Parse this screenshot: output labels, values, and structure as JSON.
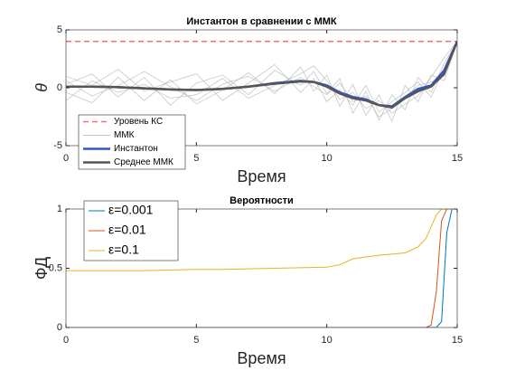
{
  "chart_data": [
    {
      "type": "line",
      "title": "Инстантон в сравнении с ММК",
      "xlabel": "Время",
      "ylabel": "θ",
      "x": [
        0,
        1,
        2,
        3,
        4,
        5,
        6,
        7,
        8,
        9,
        9.5,
        10,
        10.5,
        11,
        11.5,
        12,
        12.5,
        13,
        13.5,
        14,
        14.5,
        15
      ],
      "xlim": [
        0,
        15
      ],
      "ylim": [
        -5,
        5
      ],
      "xticks": [
        0,
        5,
        10,
        15
      ],
      "yticks": [
        -5,
        0,
        5
      ],
      "legend": "southwest",
      "series": [
        {
          "name": "Уровень КС",
          "color": "#ff6b6b",
          "dash": true,
          "width": 1.5,
          "values": [
            4,
            4,
            4,
            4,
            4,
            4,
            4,
            4,
            4,
            4,
            4,
            4,
            4,
            4,
            4,
            4,
            4,
            4,
            4,
            4,
            4,
            4
          ]
        },
        {
          "name": "ММК",
          "color": "#b0b0b0",
          "width": 0.8,
          "traces": true,
          "values": [
            [
              0.3,
              1.2,
              -0.8,
              0.9,
              -1.5,
              0.4,
              1.1,
              -0.6,
              1.5,
              0.2,
              1.4,
              -0.5,
              0.8,
              -2.2,
              -0.3,
              -2.8,
              -0.6,
              -1.9,
              0.9,
              -0.4,
              2.1,
              4
            ],
            [
              -0.4,
              -1.3,
              0.9,
              -1.1,
              0.7,
              -1.4,
              -0.2,
              1.3,
              -0.5,
              1.8,
              -0.3,
              1.1,
              -1.6,
              0.3,
              -2.4,
              -0.6,
              -2.9,
              0.2,
              -1.2,
              1.1,
              0.6,
              4
            ],
            [
              1.0,
              0.2,
              1.6,
              -0.3,
              0.5,
              1.2,
              -1.1,
              0.4,
              2.0,
              -0.4,
              0.8,
              -1.2,
              -0.2,
              -1.5,
              0.2,
              -2.1,
              -1.2,
              -0.4,
              0.5,
              -0.8,
              1.6,
              4
            ],
            [
              -1.1,
              0.6,
              -0.4,
              0.3,
              -0.9,
              -0.6,
              0.8,
              -0.9,
              0.2,
              1.2,
              1.9,
              0.6,
              -1.0,
              -0.4,
              -1.8,
              -1.1,
              -2.2,
              -1.4,
              -0.7,
              0.9,
              2.6,
              4
            ],
            [
              0.6,
              -0.7,
              0.2,
              1.4,
              0.1,
              -1.1,
              0.3,
              1.0,
              -0.3,
              0.9,
              0.1,
              -0.6,
              0.4,
              -1.2,
              -0.7,
              -2.5,
              -1.8,
              -0.9,
              0.2,
              0.5,
              1.0,
              4
            ]
          ]
        },
        {
          "name": "Инстантон",
          "color": "#3355cc",
          "width": 2.5,
          "values": [
            0.1,
            0.1,
            0.05,
            -0.05,
            -0.15,
            -0.2,
            -0.1,
            0.1,
            0.4,
            0.6,
            0.5,
            0.2,
            -0.4,
            -0.8,
            -1.0,
            -1.5,
            -1.6,
            -0.8,
            -0.1,
            0.2,
            1.5,
            4
          ]
        },
        {
          "name": "Среднее ММК",
          "color": "#555555",
          "width": 2.5,
          "values": [
            0.1,
            0.1,
            0.05,
            -0.05,
            -0.15,
            -0.2,
            -0.1,
            0.1,
            0.35,
            0.55,
            0.5,
            0.1,
            -0.5,
            -0.9,
            -1.1,
            -1.5,
            -1.7,
            -0.9,
            -0.3,
            0.1,
            1.2,
            4
          ]
        }
      ]
    },
    {
      "type": "line",
      "title": "Вероятности",
      "xlabel": "Время",
      "ylabel": "ФД",
      "x": [
        0,
        1,
        2,
        3,
        4,
        5,
        6,
        7,
        8,
        9,
        10,
        10.5,
        11,
        12,
        13,
        13.5,
        13.8,
        14,
        14.2,
        14.4,
        14.6,
        14.8,
        15
      ],
      "xlim": [
        0,
        15
      ],
      "ylim": [
        0,
        1
      ],
      "xticks": [
        0,
        5,
        10,
        15
      ],
      "yticks": [
        0,
        0.5,
        1
      ],
      "legend": "northwest",
      "series": [
        {
          "name": "ε=0.001",
          "color": "#0072bd",
          "width": 1,
          "values": [
            0,
            0,
            0,
            0,
            0,
            0,
            0,
            0,
            0,
            0,
            0,
            0,
            0,
            0,
            0,
            0,
            0,
            0,
            0,
            0.05,
            0.8,
            1,
            1
          ]
        },
        {
          "name": "ε=0.01",
          "color": "#d95319",
          "width": 1,
          "values": [
            0,
            0,
            0,
            0,
            0,
            0,
            0,
            0,
            0,
            0,
            0,
            0,
            0,
            0,
            0,
            0,
            0,
            0.02,
            0.3,
            0.9,
            1,
            1,
            1
          ]
        },
        {
          "name": "ε=0.1",
          "color": "#edb120",
          "width": 1,
          "values": [
            0.48,
            0.48,
            0.48,
            0.48,
            0.485,
            0.49,
            0.49,
            0.495,
            0.5,
            0.505,
            0.51,
            0.53,
            0.58,
            0.61,
            0.63,
            0.68,
            0.75,
            0.85,
            0.95,
            1,
            1,
            1,
            1
          ]
        }
      ]
    }
  ]
}
